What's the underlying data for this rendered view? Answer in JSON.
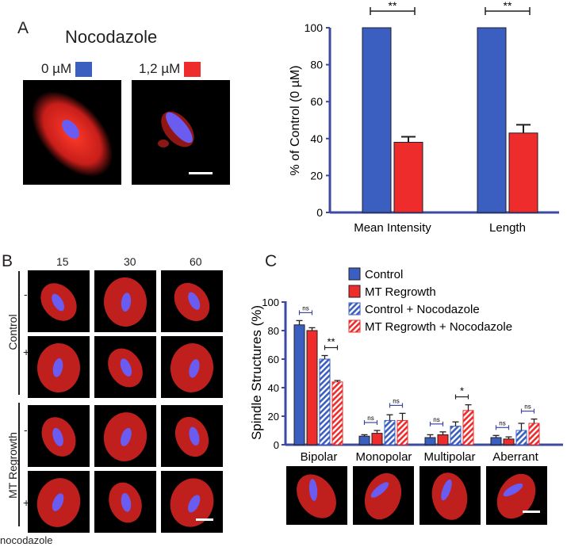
{
  "panel_a": {
    "letter": "A",
    "drug": "Nocodazole",
    "conditions": [
      {
        "label": "0 µM",
        "color": "#3b5fc0"
      },
      {
        "label": "1,2 µM",
        "color": "#ee2c2c"
      }
    ]
  },
  "panel_b": {
    "letter": "B",
    "timepoints": [
      "15",
      "30",
      "60"
    ],
    "groups": [
      {
        "name": "Control",
        "rows": [
          "-",
          "+"
        ]
      },
      {
        "name": "MT Regrowth",
        "rows": [
          "-",
          "+"
        ]
      }
    ],
    "bottom_label": "nocodazole"
  },
  "panel_c": {
    "letter": "C",
    "categories": [
      "Bipolar",
      "Monopolar",
      "Multipolar",
      "Aberrant"
    ]
  },
  "chart_data": [
    {
      "type": "bar",
      "categories": [
        "Mean Intensity",
        "Length"
      ],
      "series": [
        {
          "name": "0 µM",
          "color": "#3b5fc0",
          "values": [
            100,
            100
          ],
          "errors": [
            0,
            0
          ]
        },
        {
          "name": "1,2 µM",
          "color": "#ee2c2c",
          "values": [
            38,
            43
          ],
          "errors": [
            3,
            4.5
          ]
        }
      ],
      "ylabel": "% of Control (0 µM)",
      "ylim": [
        0,
        100
      ],
      "yticks": [
        "0",
        "20",
        "40",
        "60",
        "80",
        "100"
      ],
      "significance": [
        "**",
        "**"
      ],
      "grid": false
    },
    {
      "type": "bar",
      "categories": [
        "Bipolar",
        "Monopolar",
        "Multipolar",
        "Aberrant"
      ],
      "series": [
        {
          "name": "Control",
          "color": "#3b5fc0",
          "pattern": "solid",
          "values": [
            84,
            6,
            5,
            5
          ],
          "errors": [
            3,
            1,
            2,
            1.5
          ]
        },
        {
          "name": "MT Regrowth",
          "color": "#ee2c2c",
          "pattern": "solid",
          "values": [
            80,
            8,
            7,
            4
          ],
          "errors": [
            2,
            2,
            2,
            1.5
          ]
        },
        {
          "name": "Control + Nocodazole",
          "color": "#3b5fc0",
          "pattern": "striped",
          "values": [
            60,
            17,
            13,
            10
          ],
          "errors": [
            2.5,
            4,
            3,
            5
          ]
        },
        {
          "name": "MT Regrowth + Nocodazole",
          "color": "#ee2c2c",
          "pattern": "striped",
          "values": [
            44,
            17,
            24,
            15
          ],
          "errors": [
            1,
            5,
            4,
            3
          ]
        }
      ],
      "ylabel": "Spindle Structures (%)",
      "ylim": [
        0,
        100
      ],
      "yticks": [
        "0",
        "20",
        "40",
        "60",
        "80",
        "100"
      ],
      "legend_position": "top-right",
      "annotations": [
        {
          "category": "Bipolar",
          "pair": "Control vs MT Regrowth",
          "text": "ns"
        },
        {
          "category": "Bipolar",
          "pair": "Control + Nocodazole vs MT Regrowth + Nocodazole",
          "text": "**"
        },
        {
          "category": "Monopolar",
          "pair": "Control vs MT Regrowth",
          "text": "ns"
        },
        {
          "category": "Monopolar",
          "pair": "Control + Nocodazole vs MT Regrowth + Nocodazole",
          "text": "ns"
        },
        {
          "category": "Multipolar",
          "pair": "Control vs MT Regrowth",
          "text": "ns"
        },
        {
          "category": "Multipolar",
          "pair": "Control + Nocodazole vs MT Regrowth + Nocodazole",
          "text": "*"
        },
        {
          "category": "Aberrant",
          "pair": "Control vs MT Regrowth",
          "text": "ns"
        },
        {
          "category": "Aberrant",
          "pair": "Control + Nocodazole vs MT Regrowth + Nocodazole",
          "text": "ns"
        }
      ],
      "grid": false
    }
  ]
}
